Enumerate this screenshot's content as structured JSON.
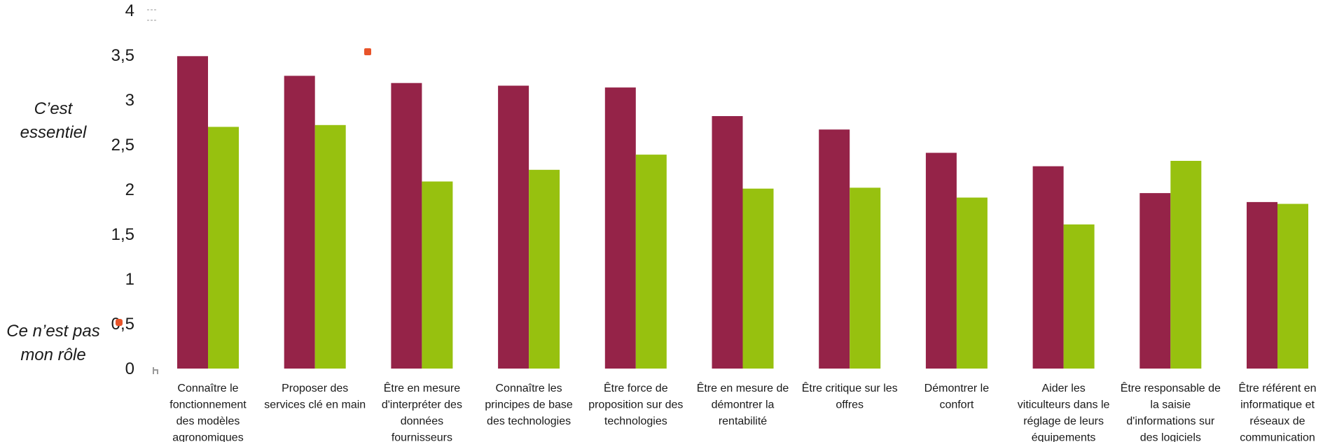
{
  "chart_data": {
    "type": "bar",
    "categories": [
      [
        "Connaître le",
        "fonctionnement",
        "des modèles",
        "agronomiques"
      ],
      [
        "Proposer des",
        "services clé en main"
      ],
      [
        "Être en mesure",
        "d'interpréter des",
        "données",
        "fournisseurs"
      ],
      [
        "Connaître les",
        "principes de base",
        "des technologies"
      ],
      [
        "Être force de",
        "proposition sur des",
        "technologies"
      ],
      [
        "Être en mesure de",
        "démontrer la",
        "rentabilité"
      ],
      [
        "Être critique sur les",
        "offres"
      ],
      [
        "Démontrer le",
        "confort"
      ],
      [
        "Aider les",
        "viticulteurs dans le",
        "réglage de leurs",
        "équipements"
      ],
      [
        "Être responsable de",
        "la saisie",
        "d'informations sur",
        "des logiciels"
      ],
      [
        "Être référent en",
        "informatique et",
        "réseaux de",
        "communication"
      ]
    ],
    "series": [
      {
        "color": "#952348",
        "values": [
          3.49,
          3.27,
          3.19,
          3.16,
          3.14,
          2.82,
          2.67,
          2.41,
          2.26,
          1.96,
          1.86
        ]
      },
      {
        "color": "#97c10f",
        "values": [
          2.7,
          2.72,
          2.09,
          2.22,
          2.39,
          2.01,
          2.02,
          1.91,
          1.61,
          2.32,
          1.84
        ]
      }
    ],
    "y_ticks": [
      "0",
      "0,5",
      "1",
      "1,5",
      "2",
      "2,5",
      "3",
      "3,5",
      "4"
    ],
    "ylim": [
      0,
      4
    ],
    "annotations": {
      "top": [
        "C’est",
        "essentiel"
      ],
      "bottom": [
        "Ce n’est pas",
        "mon rôle"
      ]
    },
    "grid": false,
    "legend": "none"
  }
}
